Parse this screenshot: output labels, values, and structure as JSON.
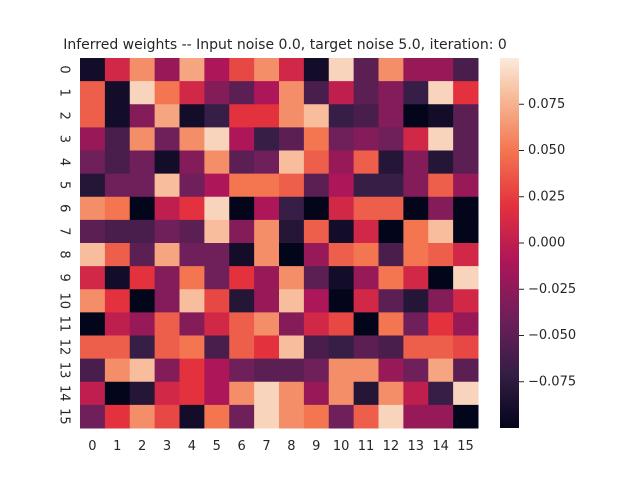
{
  "chart_data": {
    "type": "heatmap",
    "title": "Inferred weights -- Input noise 0.0, target noise 5.0, iteration: 0",
    "x_ticks": [
      "0",
      "1",
      "2",
      "3",
      "4",
      "5",
      "6",
      "7",
      "8",
      "9",
      "10",
      "11",
      "12",
      "13",
      "14",
      "15"
    ],
    "y_ticks": [
      "0",
      "1",
      "2",
      "3",
      "4",
      "5",
      "6",
      "7",
      "8",
      "9",
      "10",
      "11",
      "12",
      "13",
      "14",
      "15"
    ],
    "vmin": -0.1,
    "vmax": 0.1,
    "colormap": "rocket",
    "colorbar_ticks": [
      {
        "value": 0.075,
        "label": "0.075"
      },
      {
        "value": 0.05,
        "label": "0.050"
      },
      {
        "value": 0.025,
        "label": "0.025"
      },
      {
        "value": 0.0,
        "label": "0.000"
      },
      {
        "value": -0.025,
        "label": "−0.025"
      },
      {
        "value": -0.05,
        "label": "−0.050"
      },
      {
        "value": -0.075,
        "label": "−0.075"
      }
    ],
    "values": [
      [
        -0.09,
        0.01,
        0.06,
        -0.02,
        0.07,
        -0.01,
        0.03,
        0.06,
        0.01,
        -0.09,
        0.09,
        -0.05,
        0.06,
        -0.02,
        -0.02,
        -0.06
      ],
      [
        0.04,
        -0.09,
        0.09,
        0.05,
        0.01,
        -0.03,
        -0.05,
        -0.01,
        0.06,
        -0.06,
        0.0,
        -0.05,
        -0.03,
        -0.07,
        0.09,
        0.02
      ],
      [
        0.04,
        -0.09,
        -0.03,
        0.07,
        -0.09,
        -0.07,
        0.02,
        0.02,
        0.06,
        0.08,
        -0.07,
        -0.06,
        -0.03,
        -0.1,
        -0.09,
        -0.05
      ],
      [
        -0.02,
        -0.06,
        0.06,
        -0.04,
        0.06,
        0.09,
        -0.01,
        -0.07,
        -0.05,
        0.05,
        -0.04,
        -0.03,
        -0.04,
        0.01,
        0.09,
        -0.05
      ],
      [
        -0.04,
        -0.06,
        -0.04,
        -0.09,
        -0.03,
        0.06,
        -0.05,
        -0.04,
        0.08,
        0.04,
        -0.02,
        0.04,
        -0.08,
        -0.03,
        -0.08,
        -0.05
      ],
      [
        -0.08,
        -0.04,
        -0.04,
        0.08,
        -0.04,
        -0.01,
        0.05,
        0.05,
        0.04,
        -0.05,
        -0.01,
        -0.07,
        -0.07,
        -0.03,
        0.04,
        -0.02
      ],
      [
        0.06,
        0.05,
        -0.1,
        0.0,
        0.02,
        0.09,
        -0.1,
        -0.01,
        -0.07,
        -0.1,
        0.01,
        0.04,
        0.04,
        -0.1,
        -0.03,
        -0.1
      ],
      [
        -0.05,
        -0.06,
        -0.06,
        -0.04,
        -0.05,
        0.08,
        -0.03,
        0.06,
        -0.08,
        0.04,
        -0.09,
        0.01,
        -0.1,
        0.05,
        0.08,
        -0.1
      ],
      [
        0.08,
        0.04,
        -0.05,
        0.07,
        -0.04,
        -0.04,
        -0.09,
        0.06,
        -0.1,
        -0.02,
        0.04,
        0.05,
        -0.06,
        0.05,
        0.04,
        0.01
      ],
      [
        0.01,
        -0.09,
        0.02,
        -0.03,
        0.05,
        -0.04,
        0.02,
        -0.02,
        0.06,
        -0.05,
        -0.09,
        -0.02,
        0.05,
        0.01,
        -0.1,
        0.09
      ],
      [
        0.06,
        0.02,
        -0.1,
        -0.03,
        0.08,
        0.03,
        -0.08,
        -0.02,
        0.08,
        -0.01,
        -0.1,
        0.01,
        -0.05,
        -0.08,
        -0.03,
        0.01
      ],
      [
        -0.1,
        0.0,
        -0.02,
        0.04,
        -0.03,
        0.01,
        0.04,
        0.06,
        -0.03,
        0.01,
        0.03,
        -0.1,
        0.05,
        -0.04,
        0.02,
        -0.02
      ],
      [
        0.04,
        0.04,
        -0.07,
        0.04,
        0.05,
        -0.06,
        0.04,
        0.02,
        0.08,
        -0.06,
        -0.07,
        -0.05,
        -0.06,
        0.04,
        0.04,
        0.03
      ],
      [
        -0.06,
        0.06,
        0.08,
        -0.03,
        0.02,
        -0.01,
        -0.04,
        -0.05,
        -0.05,
        -0.04,
        0.06,
        0.06,
        -0.02,
        -0.04,
        0.07,
        -0.05
      ],
      [
        0.0,
        -0.1,
        -0.08,
        0.01,
        0.02,
        -0.01,
        0.06,
        0.09,
        0.06,
        -0.02,
        0.06,
        -0.08,
        0.06,
        0.0,
        -0.07,
        0.09
      ],
      [
        -0.04,
        0.02,
        0.06,
        0.03,
        -0.09,
        0.05,
        -0.04,
        0.09,
        0.06,
        0.05,
        -0.04,
        0.04,
        0.09,
        -0.02,
        -0.02,
        -0.1
      ]
    ]
  }
}
